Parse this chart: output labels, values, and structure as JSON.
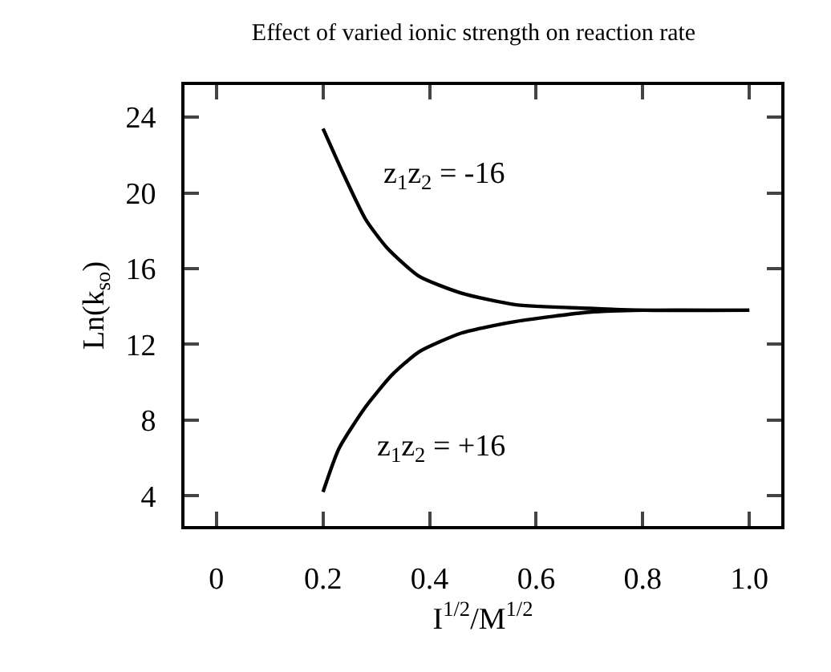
{
  "chart_data": {
    "type": "line",
    "title": "Effect of varied ionic strength on reaction rate",
    "xlabel": "I$^{1/2}$/M$^{1/2}$",
    "ylabel": "Ln(k$_{so}$)",
    "xlim": [
      -0.06,
      1.06
    ],
    "xticks": [
      0,
      0.2,
      0.4,
      0.6,
      0.8,
      {
        "value": 1,
        "label": "1.0"
      }
    ],
    "ylim": [
      2.4,
      25.7
    ],
    "yticks": [
      4,
      8,
      12,
      16,
      20,
      24
    ],
    "series": [
      {
        "name": "z$_{1}$z$_{2}$ = -16",
        "color": "#000000",
        "x": [
          0.2,
          0.24,
          0.28,
          0.32,
          0.38,
          0.46,
          0.56,
          0.7,
          0.8,
          1.0
        ],
        "values": [
          23.4,
          20.9,
          18.6,
          17.1,
          15.6,
          14.7,
          14.1,
          13.9,
          13.8,
          13.8
        ]
      },
      {
        "name": "z$_{1}$z$_{2}$ = +16",
        "color": "#000000",
        "x": [
          0.2,
          0.23,
          0.28,
          0.33,
          0.38,
          0.46,
          0.56,
          0.7,
          0.8,
          1.0
        ],
        "values": [
          4.2,
          6.5,
          8.7,
          10.4,
          11.6,
          12.6,
          13.2,
          13.7,
          13.8,
          13.8
        ]
      }
    ],
    "legend": false,
    "grid": false,
    "marker": "none",
    "line_style": "solid"
  }
}
